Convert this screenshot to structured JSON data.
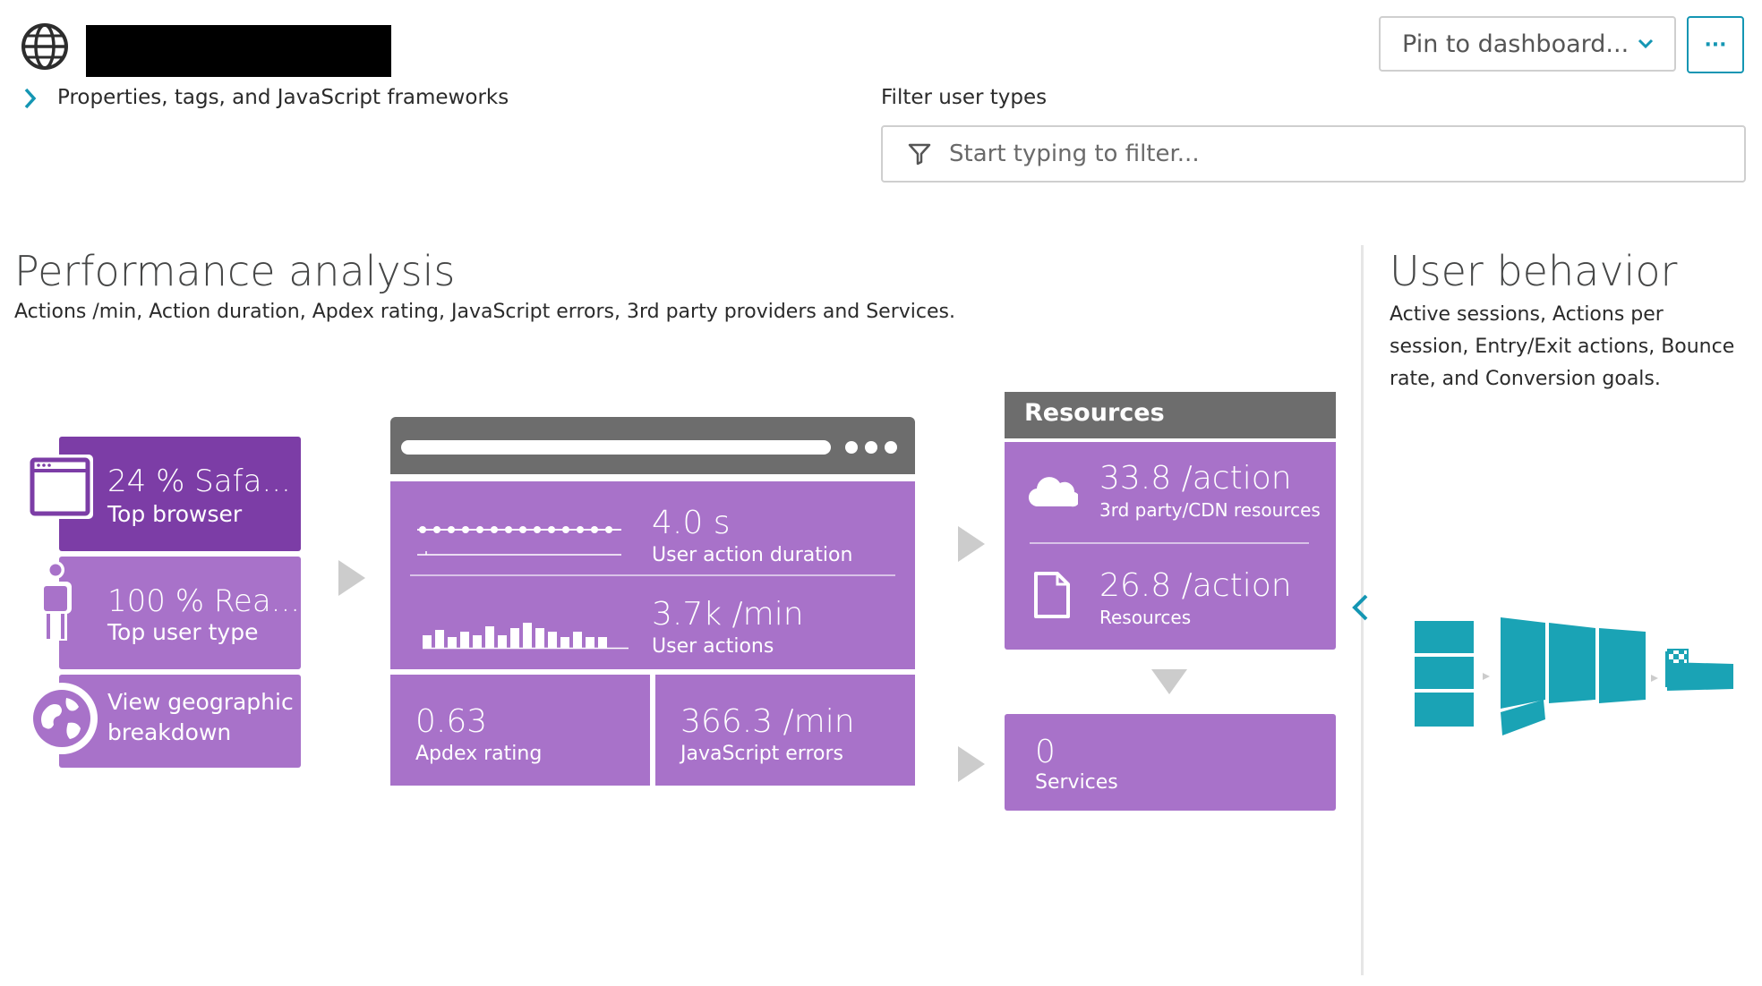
{
  "header": {
    "pin_label": "Pin to dashboard...",
    "more_label": "···",
    "properties_label": "Properties, tags, and JavaScript frameworks",
    "filter_label": "Filter user types",
    "filter_placeholder": "Start typing to filter..."
  },
  "performance": {
    "title": "Performance analysis",
    "description": "Actions /min, Action duration, Apdex rating, JavaScript errors, 3rd party providers and Services.",
    "top_browser": {
      "value": "24 %  Safa...",
      "label": "Top browser"
    },
    "top_user_type": {
      "value": "100 %  Rea...",
      "label": "Top user type"
    },
    "geo": {
      "line1": "View geographic",
      "line2": "breakdown"
    },
    "action_duration": {
      "value": "4.0 s",
      "label": "User action duration"
    },
    "user_actions": {
      "value": "3.7k /min",
      "label": "User actions"
    },
    "apdex": {
      "value": "0.63",
      "label": "Apdex rating"
    },
    "js_errors": {
      "value": "366.3 /min",
      "label": "JavaScript errors"
    },
    "resources": {
      "title": "Resources",
      "third_party": {
        "value": "33.8 /action",
        "label": "3rd party/CDN resources"
      },
      "resources": {
        "value": "26.8 /action",
        "label": "Resources"
      }
    },
    "services": {
      "value": "0",
      "label": "Services"
    }
  },
  "user_behavior": {
    "title": "User behavior",
    "description": "Active sessions, Actions per session, Entry/Exit actions, Bounce rate, and Conversion goals."
  },
  "colors": {
    "tile_purple": "#a872c9",
    "tile_dark_purple": "#7c3da6",
    "header_grey": "#6d6d6d",
    "accent_teal": "#1496b3",
    "funnel_teal": "#1aa3b5"
  }
}
